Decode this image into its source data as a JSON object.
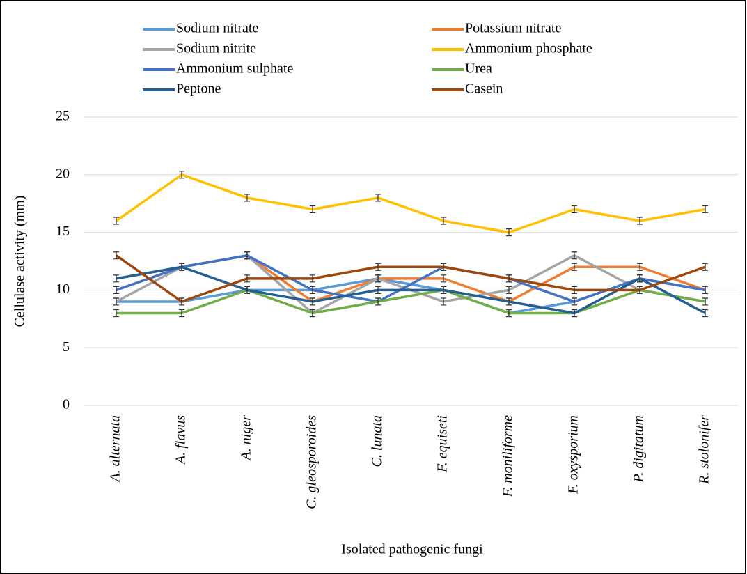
{
  "chart_data": {
    "type": "line",
    "y_label": "Cellulase activity (mm)",
    "x_label": "Isolated pathogenic fungi",
    "categories": [
      "A. alternata",
      "A. flavus",
      "A. niger",
      "C. gleosporoides",
      "C. lunata",
      "F. equiseti",
      "F. moniliforme",
      "F. oxysporium",
      "P. digitatum",
      "R. stolonifer"
    ],
    "ylim": [
      0,
      25
    ],
    "yticks": [
      0,
      5,
      10,
      15,
      20,
      25
    ],
    "grid": true,
    "series": [
      {
        "name": "Sodium nitrate",
        "color": "#5b9bd5",
        "values": [
          9,
          9,
          10,
          10,
          11,
          10,
          8,
          9,
          11,
          10
        ],
        "error": 0.3
      },
      {
        "name": "Potassium nitrate",
        "color": "#ed7d31",
        "values": [
          10,
          12,
          13,
          9,
          11,
          11,
          9,
          12,
          12,
          10
        ],
        "error": 0.3
      },
      {
        "name": "Sodium nitrite",
        "color": "#a5a5a5",
        "values": [
          9,
          12,
          13,
          8,
          11,
          9,
          10,
          13,
          10,
          9
        ],
        "error": 0.3
      },
      {
        "name": "Ammonium phosphate",
        "color": "#ffc000",
        "values": [
          16,
          20,
          18,
          17,
          18,
          16,
          15,
          17,
          16,
          17
        ],
        "error": 0.3
      },
      {
        "name": "Ammonium sulphate",
        "color": "#4472c4",
        "values": [
          10,
          12,
          13,
          10,
          9,
          12,
          11,
          9,
          11,
          10
        ],
        "error": 0.3
      },
      {
        "name": "Urea",
        "color": "#70ad47",
        "values": [
          8,
          8,
          10,
          8,
          9,
          10,
          8,
          8,
          10,
          9
        ],
        "error": 0.3
      },
      {
        "name": "Peptone",
        "color": "#255e91",
        "values": [
          11,
          12,
          10,
          9,
          10,
          10,
          9,
          8,
          11,
          8
        ],
        "error": 0.3
      },
      {
        "name": "Casein",
        "color": "#9e480e",
        "values": [
          13,
          9,
          11,
          11,
          12,
          12,
          11,
          10,
          10,
          12
        ],
        "error": 0.3
      }
    ]
  }
}
